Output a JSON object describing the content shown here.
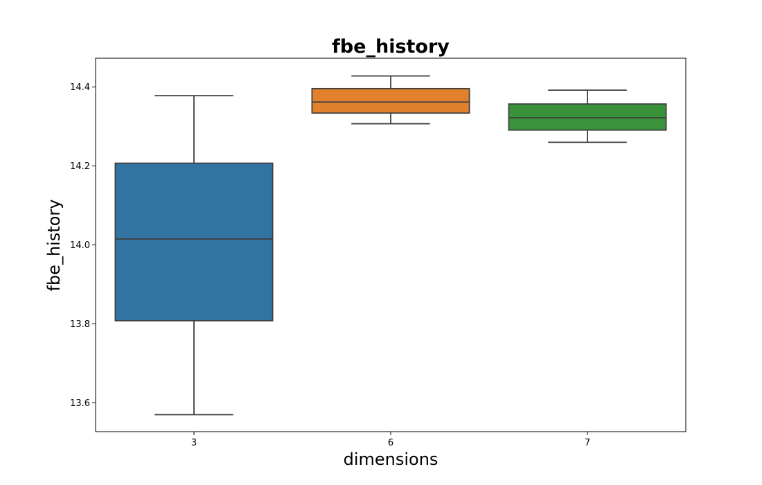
{
  "chart_data": {
    "type": "box",
    "title": "fbe_history",
    "xlabel": "dimensions",
    "ylabel": "fbe_history",
    "categories": [
      "3",
      "6",
      "7"
    ],
    "ylim": [
      13.527,
      14.473
    ],
    "yticks": [
      13.6,
      13.8,
      14.0,
      14.2,
      14.4
    ],
    "ytick_labels": [
      "13.6",
      "13.8",
      "14.0",
      "14.2",
      "14.4"
    ],
    "grid": false,
    "boxes": [
      {
        "category": "3",
        "whisker_low": 13.57,
        "q1": 13.808,
        "median": 14.015,
        "q3": 14.207,
        "whisker_high": 14.378,
        "color": "#3274a1"
      },
      {
        "category": "6",
        "whisker_low": 14.307,
        "q1": 14.334,
        "median": 14.362,
        "q3": 14.396,
        "whisker_high": 14.428,
        "color": "#e1812c"
      },
      {
        "category": "7",
        "whisker_low": 14.26,
        "q1": 14.291,
        "median": 14.322,
        "q3": 14.357,
        "whisker_high": 14.392,
        "color": "#3a923a"
      }
    ],
    "line_color": "#3f3f3f"
  }
}
